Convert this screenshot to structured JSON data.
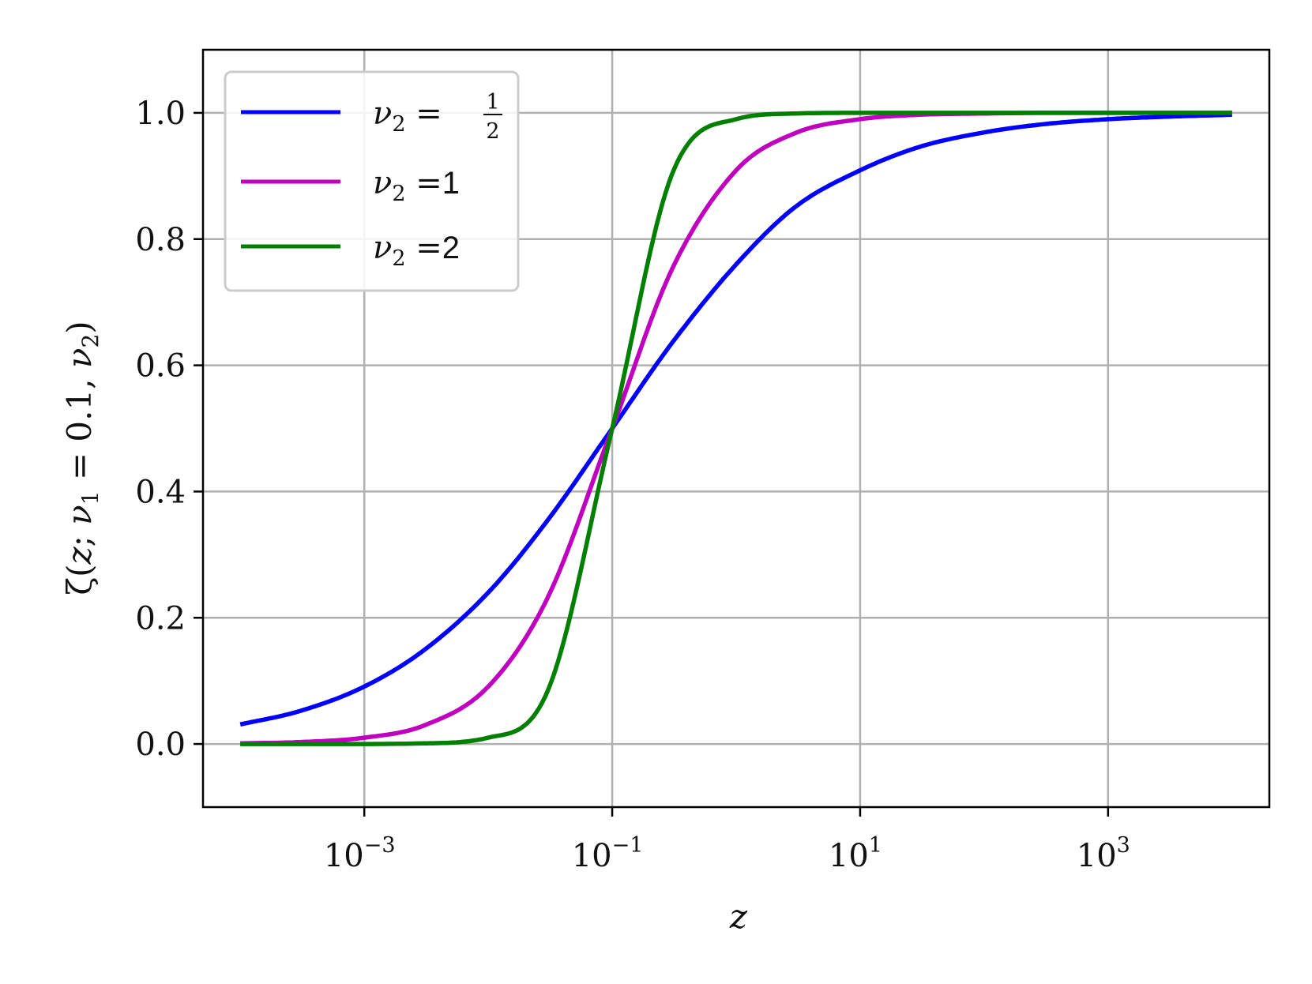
{
  "chart_data": {
    "type": "line",
    "title": "",
    "xlabel": "z",
    "ylabel": "ζ(z; ν₁ = 0.1, ν₂)",
    "xscale": "log",
    "xlim": [
      5e-05,
      20000
    ],
    "ylim": [
      -0.1,
      1.1
    ],
    "grid": true,
    "legend_position": "upper-left",
    "x_ticks": [
      {
        "value": 0.001,
        "base": "10",
        "exp": "−3"
      },
      {
        "value": 0.1,
        "base": "10",
        "exp": "−1"
      },
      {
        "value": 10,
        "base": "10",
        "exp": "1"
      },
      {
        "value": 1000,
        "base": "10",
        "exp": "3"
      }
    ],
    "y_ticks": [
      {
        "value": 0.0,
        "label": "0.0"
      },
      {
        "value": 0.2,
        "label": "0.2"
      },
      {
        "value": 0.4,
        "label": "0.4"
      },
      {
        "value": 0.6,
        "label": "0.6"
      },
      {
        "value": 0.8,
        "label": "0.8"
      },
      {
        "value": 1.0,
        "label": "1.0"
      }
    ],
    "series": [
      {
        "name": "ν₂ = 1/2",
        "legend_prefix": "ν₂ =",
        "legend_value_fraction": {
          "numerator": "1",
          "denominator": "2"
        },
        "color": "#0000ff",
        "x": [
          0.0001,
          0.0003,
          0.001,
          0.003,
          0.01,
          0.03,
          0.1,
          0.3,
          1,
          3,
          10,
          30,
          100,
          300,
          1000,
          3000,
          10000
        ],
        "y": [
          0.031,
          0.052,
          0.091,
          0.148,
          0.24,
          0.354,
          0.5,
          0.634,
          0.76,
          0.851,
          0.909,
          0.946,
          0.969,
          0.982,
          0.99,
          0.994,
          0.997
        ]
      },
      {
        "name": "ν₂ =1",
        "legend_prefix": "ν₂ =",
        "legend_value": "1",
        "color": "#bf00bf",
        "x": [
          0.0001,
          0.0003,
          0.001,
          0.003,
          0.01,
          0.03,
          0.1,
          0.3,
          1,
          3,
          10,
          30,
          100,
          300,
          1000,
          3000,
          10000
        ],
        "y": [
          0.001,
          0.003,
          0.01,
          0.029,
          0.091,
          0.231,
          0.5,
          0.75,
          0.909,
          0.968,
          0.99,
          0.997,
          0.999,
          1.0,
          1.0,
          1.0,
          1.0
        ]
      },
      {
        "name": "ν₂ =2",
        "legend_prefix": "ν₂ =",
        "legend_value": "2",
        "color": "#007f00",
        "x": [
          0.0001,
          0.0003,
          0.001,
          0.003,
          0.01,
          0.03,
          0.1,
          0.3,
          1,
          3,
          10,
          30,
          100,
          300,
          1000,
          3000,
          10000
        ],
        "y": [
          0.0,
          0.0,
          0.0,
          0.001,
          0.01,
          0.083,
          0.5,
          0.9,
          0.99,
          0.999,
          1.0,
          1.0,
          1.0,
          1.0,
          1.0,
          1.0,
          1.0
        ]
      }
    ]
  },
  "ylabel_parts": {
    "zeta": "ζ(",
    "z": "z",
    "semi": "; ",
    "nu": "ν",
    "sub1": "1",
    "equals": " = 0.1, ",
    "sub2": "2",
    "close": ")"
  },
  "colors": {
    "grid": "#b0b0b0",
    "axes": "#000000",
    "legend_border": "#cccccc"
  }
}
